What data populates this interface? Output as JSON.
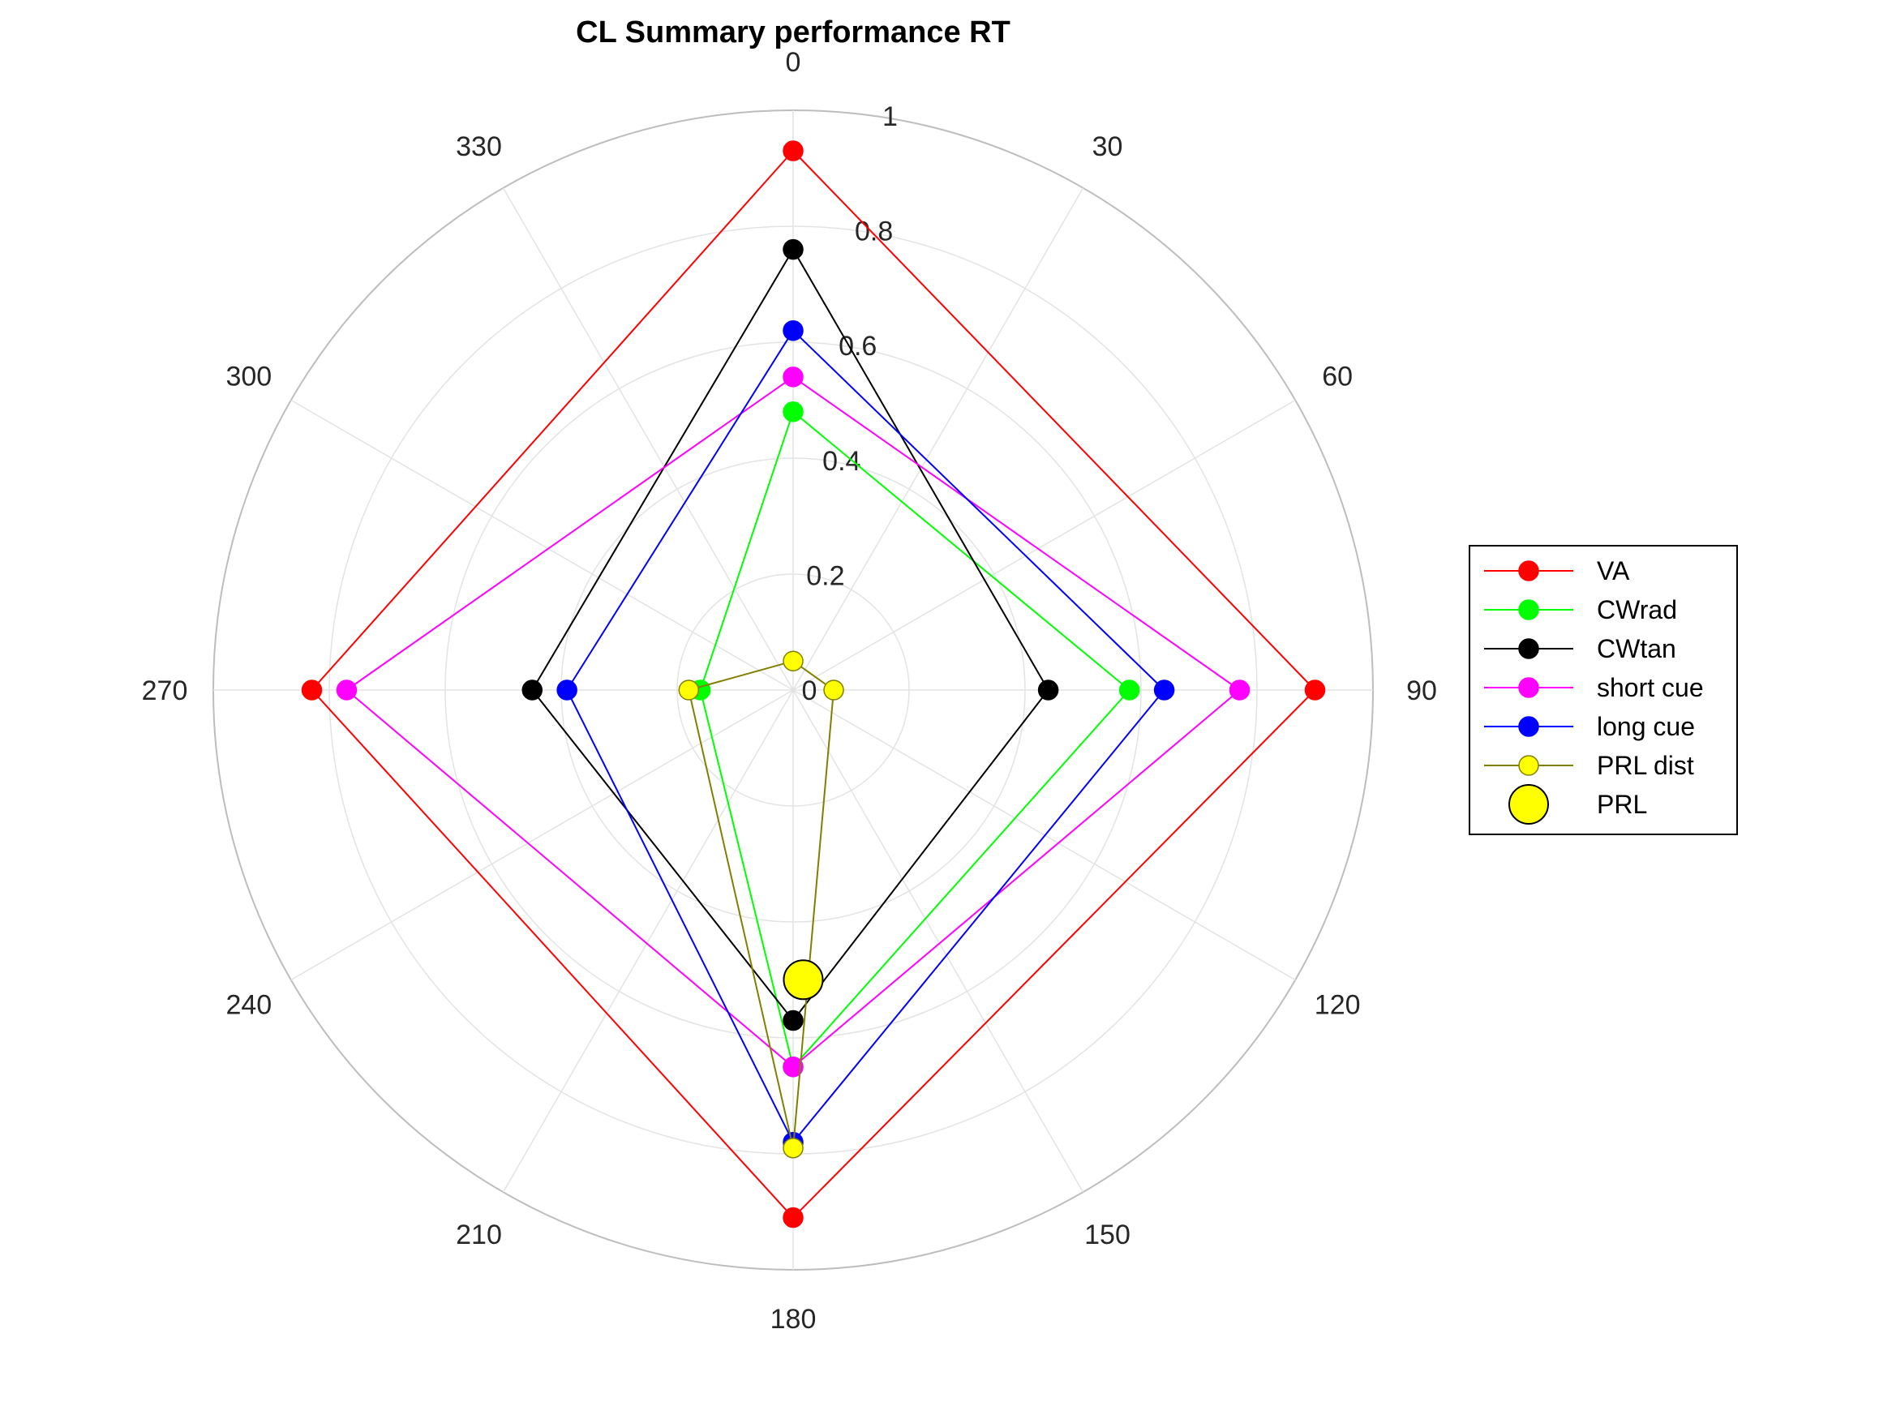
{
  "chart_data": {
    "type": "polar-line",
    "title": "CL Summary performance RT",
    "theta_ticks": [
      "0",
      "30",
      "60",
      "90",
      "120",
      "150",
      "180",
      "210",
      "240",
      "270",
      "300",
      "330"
    ],
    "r_ticks": [
      "0",
      "0.2",
      "0.4",
      "0.6",
      "0.8",
      "1"
    ],
    "rlim": [
      0,
      1
    ],
    "theta_zero": "top",
    "theta_direction": "clockwise",
    "grid": true,
    "legend_position": "right",
    "series": [
      {
        "name": "VA",
        "color": "#ff0000",
        "marker": "circle",
        "points": [
          {
            "theta": 0,
            "r": 0.93
          },
          {
            "theta": 90,
            "r": 0.9
          },
          {
            "theta": 180,
            "r": 0.91
          },
          {
            "theta": 270,
            "r": 0.83
          }
        ]
      },
      {
        "name": "CWrad",
        "color": "#00ff00",
        "marker": "circle",
        "points": [
          {
            "theta": 0,
            "r": 0.48
          },
          {
            "theta": 90,
            "r": 0.58
          },
          {
            "theta": 180,
            "r": 0.65
          },
          {
            "theta": 270,
            "r": 0.16
          }
        ]
      },
      {
        "name": "CWtan",
        "color": "#000000",
        "marker": "circle",
        "points": [
          {
            "theta": 0,
            "r": 0.76
          },
          {
            "theta": 90,
            "r": 0.44
          },
          {
            "theta": 180,
            "r": 0.57
          },
          {
            "theta": 270,
            "r": 0.45
          }
        ]
      },
      {
        "name": "short cue",
        "color": "#ff00ff",
        "marker": "circle",
        "points": [
          {
            "theta": 0,
            "r": 0.54
          },
          {
            "theta": 90,
            "r": 0.77
          },
          {
            "theta": 180,
            "r": 0.65
          },
          {
            "theta": 270,
            "r": 0.77
          }
        ]
      },
      {
        "name": "long cue",
        "color": "#0000ff",
        "marker": "circle",
        "points": [
          {
            "theta": 0,
            "r": 0.62
          },
          {
            "theta": 90,
            "r": 0.64
          },
          {
            "theta": 180,
            "r": 0.78
          },
          {
            "theta": 270,
            "r": 0.39
          }
        ]
      },
      {
        "name": "PRL dist",
        "color": "#808000",
        "marker_fill": "#ffff00",
        "marker": "circle",
        "points": [
          {
            "theta": 0,
            "r": 0.05
          },
          {
            "theta": 90,
            "r": 0.07
          },
          {
            "theta": 180,
            "r": 0.79
          },
          {
            "theta": 270,
            "r": 0.18
          }
        ]
      },
      {
        "name": "PRL",
        "color": "#000000",
        "marker_fill": "#ffff00",
        "marker": "large-circle",
        "line": false,
        "points": [
          {
            "theta": 178,
            "r": 0.5
          }
        ]
      }
    ]
  }
}
